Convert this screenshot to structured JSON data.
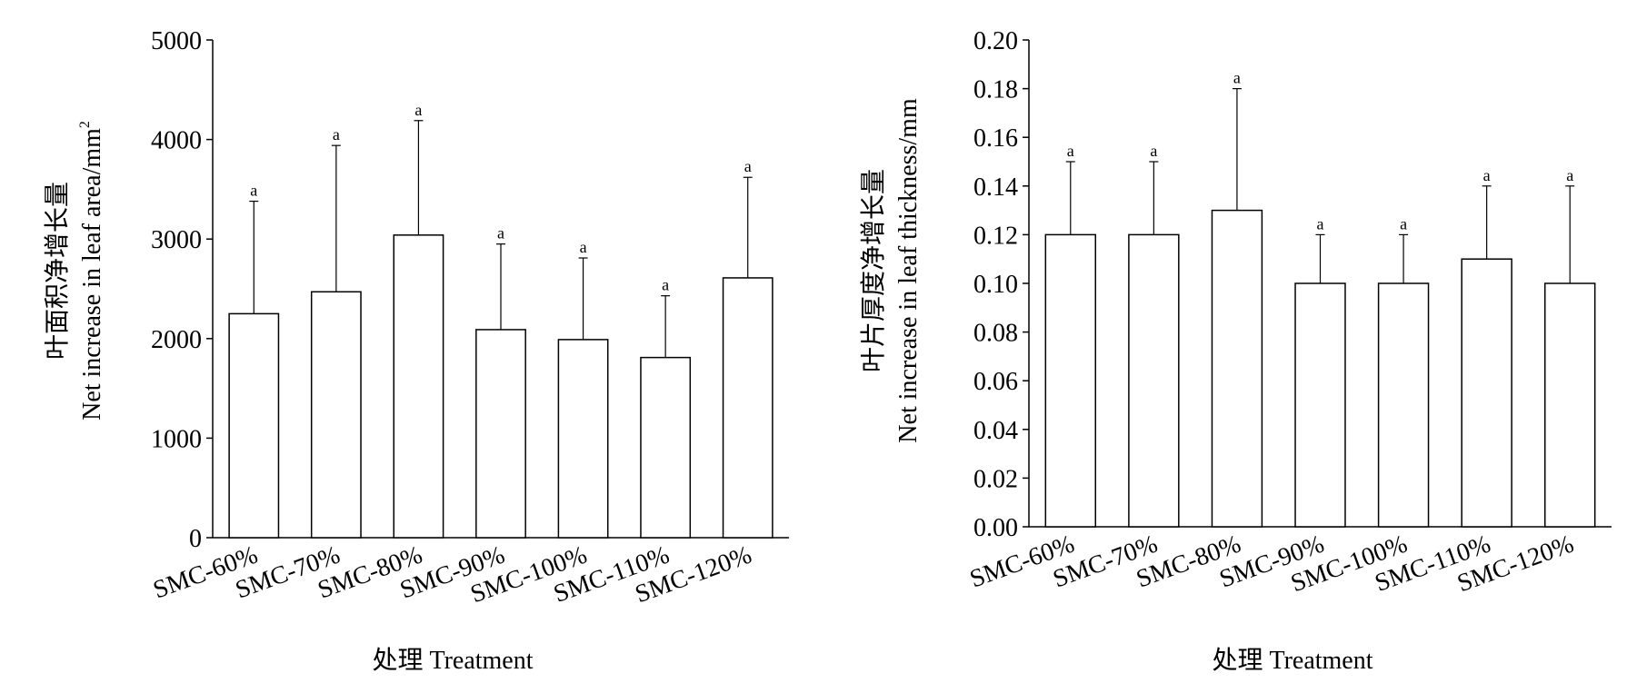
{
  "chart_data": [
    {
      "type": "bar",
      "categories": [
        "SMC-60%",
        "SMC-70%",
        "SMC-80%",
        "SMC-90%",
        "SMC-100%",
        "SMC-110%",
        "SMC-120%"
      ],
      "values": [
        2250,
        2470,
        3040,
        2090,
        1990,
        1810,
        2610
      ],
      "errors": [
        1130,
        1470,
        1150,
        860,
        820,
        620,
        1010
      ],
      "significance": [
        "a",
        "a",
        "a",
        "a",
        "a",
        "a",
        "a"
      ],
      "ylim": [
        0,
        5000
      ],
      "yticks": [
        "0",
        "1000",
        "2000",
        "3000",
        "4000",
        "5000"
      ],
      "ytick_values": [
        0,
        1000,
        2000,
        3000,
        4000,
        5000
      ],
      "ylabel_cn": "叶面积净增长量",
      "ylabel_en": "Net increase in leaf area/mm",
      "ylabel_sup": "2",
      "xlabel": "处理  Treatment"
    },
    {
      "type": "bar",
      "categories": [
        "SMC-60%",
        "SMC-70%",
        "SMC-80%",
        "SMC-90%",
        "SMC-100%",
        "SMC-110%",
        "SMC-120%"
      ],
      "values": [
        0.12,
        0.12,
        0.13,
        0.1,
        0.1,
        0.11,
        0.1
      ],
      "errors": [
        0.03,
        0.03,
        0.05,
        0.02,
        0.02,
        0.03,
        0.04
      ],
      "significance": [
        "a",
        "a",
        "a",
        "a",
        "a",
        "a",
        "a"
      ],
      "ylim": [
        0,
        0.2
      ],
      "yticks": [
        "0.00",
        "0.02",
        "0.04",
        "0.06",
        "0.08",
        "0.10",
        "0.12",
        "0.14",
        "0.16",
        "0.18",
        "0.20"
      ],
      "ytick_values": [
        0,
        0.02,
        0.04,
        0.06,
        0.08,
        0.1,
        0.12,
        0.14,
        0.16,
        0.18,
        0.2
      ],
      "ylabel_cn": "叶片厚度净增长量",
      "ylabel_en": "Net increase in leaf thickness/mm",
      "ylabel_sup": "",
      "xlabel": "处理  Treatment"
    }
  ]
}
